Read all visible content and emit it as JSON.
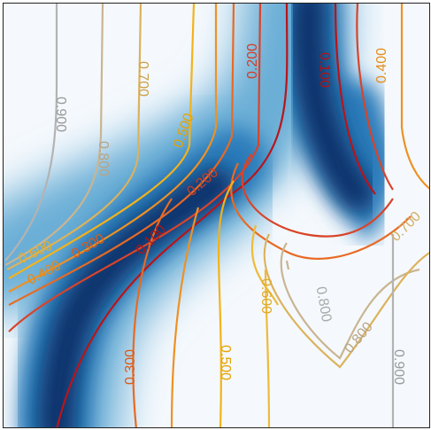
{
  "chart_data": {
    "type": "contour",
    "title": "",
    "xlabel": "",
    "ylabel": "",
    "fill_colormap": [
      "#f7fbff",
      "#c6dbef",
      "#6baed6",
      "#2171b5",
      "#08306b"
    ],
    "line_colormap": {
      "0.100": "#b9141a",
      "0.200": "#d8442a",
      "0.300": "#e86a23",
      "0.400": "#ee9124",
      "0.500": "#f4b21a",
      "0.600": "#eebb3a",
      "0.700": "#dcb25c",
      "0.800": "#c9b591",
      "0.900": "#b3b3b3"
    },
    "contour_levels": [
      "0.100",
      "0.200",
      "0.300",
      "0.400",
      "0.500",
      "0.600",
      "0.700",
      "0.800",
      "0.900"
    ],
    "contour_labels": [
      {
        "text": "0.900"
      },
      {
        "text": "0.800"
      },
      {
        "text": "0.700"
      },
      {
        "text": "0.500"
      },
      {
        "text": "0.200"
      },
      {
        "text": "0.100"
      },
      {
        "text": "0.400"
      },
      {
        "text": "0.200"
      },
      {
        "text": "0.300"
      },
      {
        "text": "0.400"
      },
      {
        "text": "0.600"
      },
      {
        "text": "0.100"
      },
      {
        "text": "0.300"
      },
      {
        "text": "0.500"
      },
      {
        "text": "0.600"
      },
      {
        "text": "0.800"
      },
      {
        "text": "0.700"
      },
      {
        "text": "0.800"
      },
      {
        "text": "0.900"
      }
    ]
  }
}
